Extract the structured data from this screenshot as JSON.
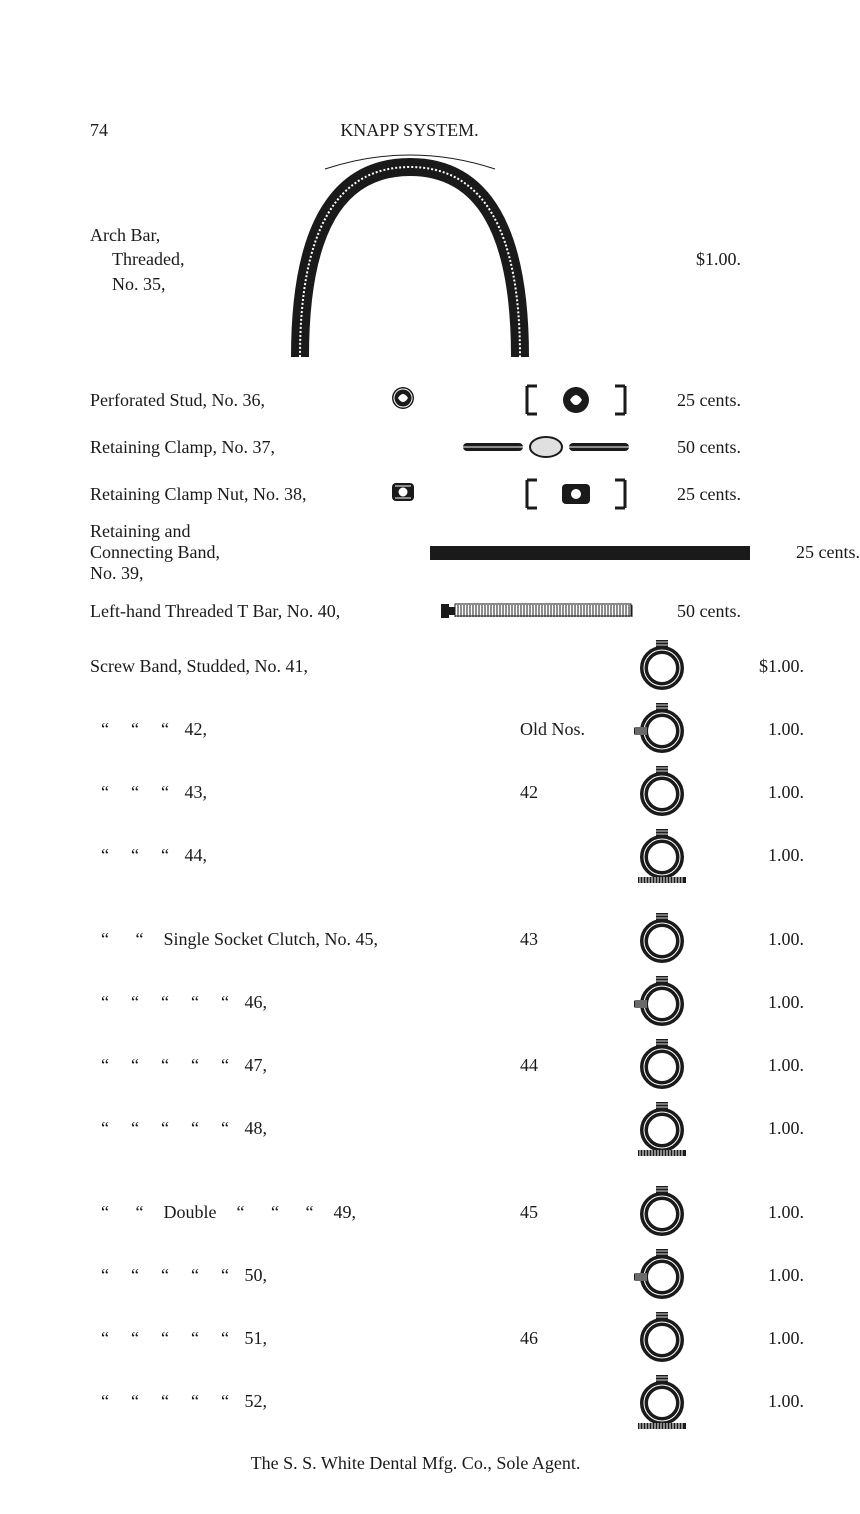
{
  "page_number": "74",
  "header_title": "KNAPP SYSTEM.",
  "arch_bar": {
    "line1": "Arch Bar,",
    "line2": "Threaded,",
    "line3": "No. 35,",
    "price": "$1.00."
  },
  "items": [
    {
      "label": "Perforated Stud, No. 36,",
      "price": "25 cents.",
      "icon": "swirl",
      "endicon": "bracket-swirl"
    },
    {
      "label": "Retaining Clamp, No. 37,",
      "price": "50 cents.",
      "endicon": "lozenge-bar"
    },
    {
      "label": "Retaining Clamp Nut, No. 38,",
      "price": "25 cents.",
      "icon": "nut",
      "endicon": "bracket-nut"
    },
    {
      "label": "Retaining and\nConnecting Band,\nNo. 39,",
      "price": "25 cents.",
      "endicon": "solid-bar"
    },
    {
      "label": "Left-hand Threaded T Bar, No. 40,",
      "price": "50 cents.",
      "endicon": "hatched-bar"
    }
  ],
  "screw_band": {
    "lead": "Screw Band, Studded, No. 41,",
    "lead_price": "$1.00.",
    "rows": [
      {
        "no": "42,",
        "old": "Old Nos.",
        "price": "1.00.",
        "clutch": "lug"
      },
      {
        "no": "43,",
        "old": "42",
        "price": "1.00.",
        "clutch": "plain"
      },
      {
        "no": "44,",
        "old": "",
        "price": "1.00.",
        "clutch": "base"
      }
    ]
  },
  "single_socket": {
    "lead": "Single Socket Clutch, No. 45,",
    "lead_old": "43",
    "lead_price": "1.00.",
    "rows": [
      {
        "no": "46,",
        "old": "",
        "price": "1.00.",
        "clutch": "lug"
      },
      {
        "no": "47,",
        "old": "44",
        "price": "1.00.",
        "clutch": "plain"
      },
      {
        "no": "48,",
        "old": "",
        "price": "1.00.",
        "clutch": "base"
      }
    ]
  },
  "double_socket": {
    "lead": "Double",
    "lead_no": "49,",
    "lead_old": "45",
    "lead_price": "1.00.",
    "rows": [
      {
        "no": "50,",
        "old": "",
        "price": "1.00.",
        "clutch": "lug"
      },
      {
        "no": "51,",
        "old": "46",
        "price": "1.00.",
        "clutch": "plain"
      },
      {
        "no": "52,",
        "old": "",
        "price": "1.00.",
        "clutch": "base"
      }
    ]
  },
  "footer": "The S. S. White Dental Mfg. Co., Sole Agent.",
  "style": {
    "fg": "#1a1a1a",
    "bg": "#ffffff"
  },
  "ditto": "“"
}
